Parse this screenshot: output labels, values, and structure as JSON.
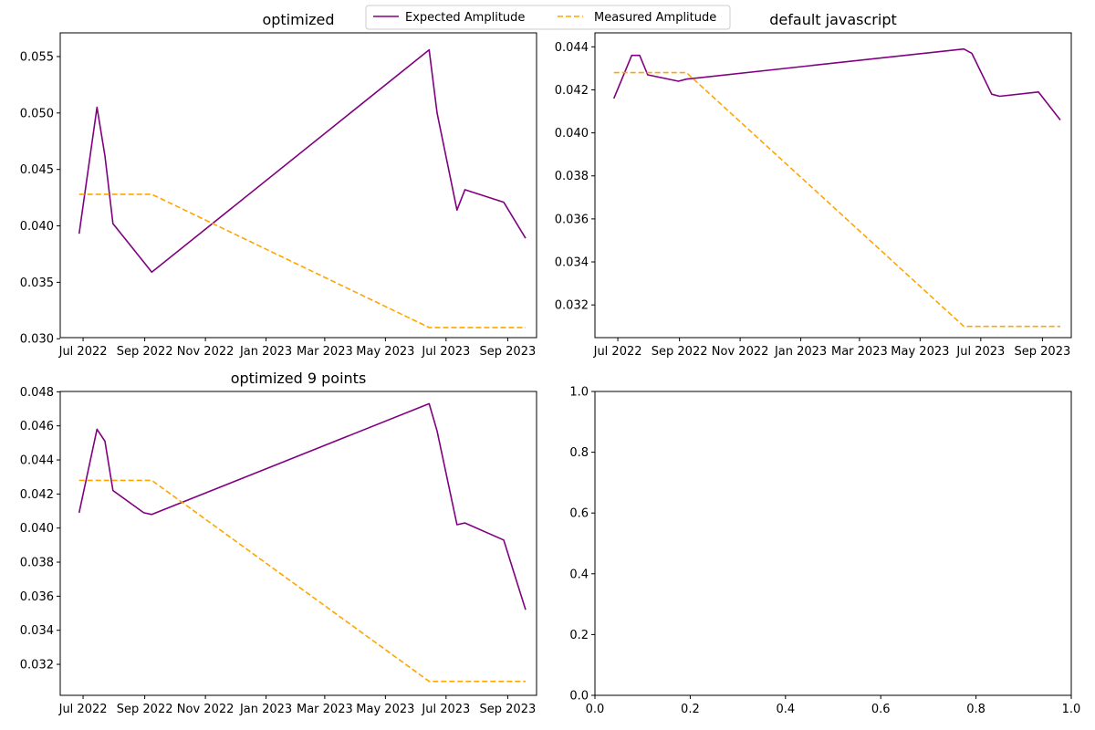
{
  "legend": {
    "position": "top-center",
    "entries": [
      {
        "label": "Expected Amplitude",
        "color": "#800080",
        "style": "solid"
      },
      {
        "label": "Measured Amplitude",
        "color": "#ffa500",
        "style": "dashed"
      }
    ]
  },
  "chart_data": [
    {
      "type": "line",
      "title": "optimized",
      "xlabel": "",
      "ylabel": "",
      "x_is_date": true,
      "xlim": [
        "2022-06-08",
        "2023-09-30"
      ],
      "ylim": [
        0.0301,
        0.0571
      ],
      "xticks": [
        {
          "value": "2022-07-01",
          "label": "Jul 2022"
        },
        {
          "value": "2022-09-01",
          "label": "Sep 2022"
        },
        {
          "value": "2022-11-01",
          "label": "Nov 2022"
        },
        {
          "value": "2023-01-01",
          "label": "Jan 2023"
        },
        {
          "value": "2023-03-01",
          "label": "Mar 2023"
        },
        {
          "value": "2023-05-01",
          "label": "May 2023"
        },
        {
          "value": "2023-07-01",
          "label": "Jul 2023"
        },
        {
          "value": "2023-09-01",
          "label": "Sep 2023"
        }
      ],
      "yticks": [
        {
          "value": 0.03,
          "label": "0.030"
        },
        {
          "value": 0.035,
          "label": "0.035"
        },
        {
          "value": 0.04,
          "label": "0.040"
        },
        {
          "value": 0.045,
          "label": "0.045"
        },
        {
          "value": 0.05,
          "label": "0.050"
        },
        {
          "value": 0.055,
          "label": "0.055"
        }
      ],
      "series": [
        {
          "name": "Expected Amplitude",
          "color": "#800080",
          "style": "solid",
          "x": [
            "2022-06-27",
            "2022-07-15",
            "2022-07-23",
            "2022-07-31",
            "2022-08-31",
            "2022-09-08",
            "2023-06-14",
            "2023-06-22",
            "2023-07-12",
            "2023-07-20",
            "2023-08-28",
            "2023-09-19"
          ],
          "y": [
            0.0393,
            0.0505,
            0.0462,
            0.0402,
            0.0368,
            0.0359,
            0.0556,
            0.05,
            0.0414,
            0.0432,
            0.0421,
            0.0389
          ]
        },
        {
          "name": "Measured Amplitude",
          "color": "#ffa500",
          "style": "dashed",
          "x": [
            "2022-06-27",
            "2022-09-08",
            "2023-06-14",
            "2023-09-19"
          ],
          "y": [
            0.0428,
            0.0428,
            0.031,
            0.031
          ]
        }
      ]
    },
    {
      "type": "line",
      "title": "default javascript",
      "xlabel": "",
      "ylabel": "",
      "x_is_date": true,
      "xlim": [
        "2022-06-08",
        "2023-09-30"
      ],
      "ylim": [
        0.03048,
        0.04465
      ],
      "xticks": [
        {
          "value": "2022-07-01",
          "label": "Jul 2022"
        },
        {
          "value": "2022-09-01",
          "label": "Sep 2022"
        },
        {
          "value": "2022-11-01",
          "label": "Nov 2022"
        },
        {
          "value": "2023-01-01",
          "label": "Jan 2023"
        },
        {
          "value": "2023-03-01",
          "label": "Mar 2023"
        },
        {
          "value": "2023-05-01",
          "label": "May 2023"
        },
        {
          "value": "2023-07-01",
          "label": "Jul 2023"
        },
        {
          "value": "2023-09-01",
          "label": "Sep 2023"
        }
      ],
      "yticks": [
        {
          "value": 0.032,
          "label": "0.032"
        },
        {
          "value": 0.034,
          "label": "0.034"
        },
        {
          "value": 0.036,
          "label": "0.036"
        },
        {
          "value": 0.038,
          "label": "0.038"
        },
        {
          "value": 0.04,
          "label": "0.040"
        },
        {
          "value": 0.042,
          "label": "0.042"
        },
        {
          "value": 0.044,
          "label": "0.044"
        }
      ],
      "series": [
        {
          "name": "Expected Amplitude",
          "color": "#800080",
          "style": "solid",
          "x": [
            "2022-06-27",
            "2022-07-15",
            "2022-07-23",
            "2022-07-31",
            "2022-08-31",
            "2022-09-08",
            "2023-06-14",
            "2023-06-22",
            "2023-07-12",
            "2023-07-20",
            "2023-08-28",
            "2023-09-19"
          ],
          "y": [
            0.0416,
            0.0436,
            0.0436,
            0.0427,
            0.0424,
            0.0425,
            0.0439,
            0.0437,
            0.0418,
            0.0417,
            0.0419,
            0.0406
          ]
        },
        {
          "name": "Measured Amplitude",
          "color": "#ffa500",
          "style": "dashed",
          "x": [
            "2022-06-27",
            "2022-09-08",
            "2023-06-14",
            "2023-09-19"
          ],
          "y": [
            0.0428,
            0.0428,
            0.031,
            0.031
          ]
        }
      ]
    },
    {
      "type": "line",
      "title": "optimized 9 points",
      "xlabel": "",
      "ylabel": "",
      "x_is_date": true,
      "xlim": [
        "2022-06-08",
        "2023-09-30"
      ],
      "ylim": [
        0.03018,
        0.04802
      ],
      "xticks": [
        {
          "value": "2022-07-01",
          "label": "Jul 2022"
        },
        {
          "value": "2022-09-01",
          "label": "Sep 2022"
        },
        {
          "value": "2022-11-01",
          "label": "Nov 2022"
        },
        {
          "value": "2023-01-01",
          "label": "Jan 2023"
        },
        {
          "value": "2023-03-01",
          "label": "Mar 2023"
        },
        {
          "value": "2023-05-01",
          "label": "May 2023"
        },
        {
          "value": "2023-07-01",
          "label": "Jul 2023"
        },
        {
          "value": "2023-09-01",
          "label": "Sep 2023"
        }
      ],
      "yticks": [
        {
          "value": 0.032,
          "label": "0.032"
        },
        {
          "value": 0.034,
          "label": "0.034"
        },
        {
          "value": 0.036,
          "label": "0.036"
        },
        {
          "value": 0.038,
          "label": "0.038"
        },
        {
          "value": 0.04,
          "label": "0.040"
        },
        {
          "value": 0.042,
          "label": "0.042"
        },
        {
          "value": 0.044,
          "label": "0.044"
        },
        {
          "value": 0.046,
          "label": "0.046"
        },
        {
          "value": 0.048,
          "label": "0.048"
        }
      ],
      "series": [
        {
          "name": "Expected Amplitude",
          "color": "#800080",
          "style": "solid",
          "x": [
            "2022-06-27",
            "2022-07-15",
            "2022-07-23",
            "2022-07-31",
            "2022-08-31",
            "2022-09-08",
            "2023-06-14",
            "2023-06-22",
            "2023-07-12",
            "2023-07-20",
            "2023-08-28",
            "2023-09-19"
          ],
          "y": [
            0.0409,
            0.0458,
            0.0451,
            0.0422,
            0.0409,
            0.0408,
            0.0473,
            0.0457,
            0.0402,
            0.0403,
            0.0393,
            0.0352
          ]
        },
        {
          "name": "Measured Amplitude",
          "color": "#ffa500",
          "style": "dashed",
          "x": [
            "2022-06-27",
            "2022-09-08",
            "2023-06-14",
            "2023-09-19"
          ],
          "y": [
            0.0428,
            0.0428,
            0.031,
            0.031
          ]
        }
      ]
    },
    {
      "type": "line",
      "title": "",
      "xlabel": "",
      "ylabel": "",
      "x_is_date": false,
      "xlim": [
        0,
        1
      ],
      "ylim": [
        0,
        1
      ],
      "xticks": [
        {
          "value": 0.0,
          "label": "0.0"
        },
        {
          "value": 0.2,
          "label": "0.2"
        },
        {
          "value": 0.4,
          "label": "0.4"
        },
        {
          "value": 0.6,
          "label": "0.6"
        },
        {
          "value": 0.8,
          "label": "0.8"
        },
        {
          "value": 1.0,
          "label": "1.0"
        }
      ],
      "yticks": [
        {
          "value": 0.0,
          "label": "0.0"
        },
        {
          "value": 0.2,
          "label": "0.2"
        },
        {
          "value": 0.4,
          "label": "0.4"
        },
        {
          "value": 0.6,
          "label": "0.6"
        },
        {
          "value": 0.8,
          "label": "0.8"
        },
        {
          "value": 1.0,
          "label": "1.0"
        }
      ],
      "series": []
    }
  ]
}
